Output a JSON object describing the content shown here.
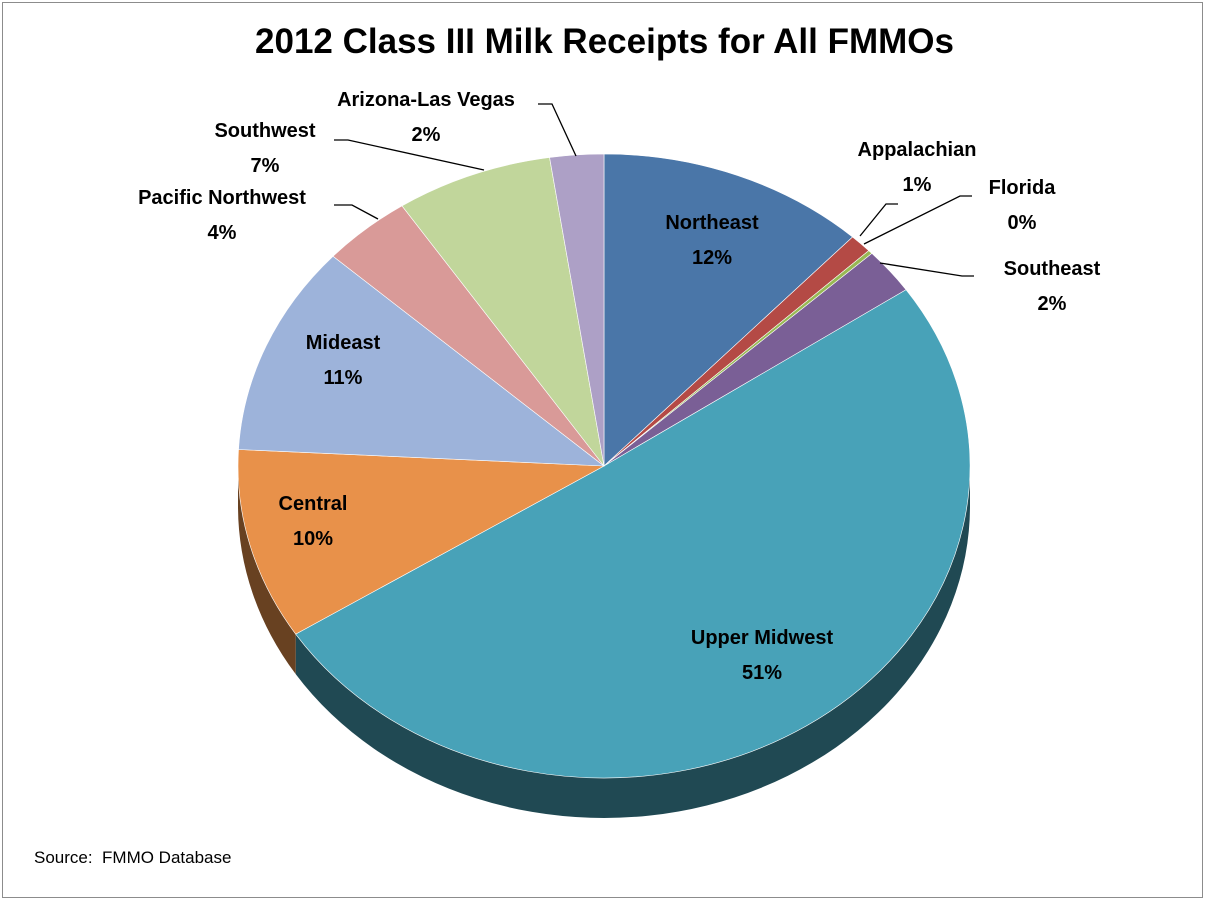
{
  "chart_data": {
    "type": "pie",
    "title": "2012 Class III Milk Receipts for All FMMOs",
    "three_d": true,
    "slices": [
      {
        "label": "Northeast",
        "value": 12,
        "value_label": "12%",
        "color": "#4A76A8"
      },
      {
        "label": "Appalachian",
        "value": 1,
        "value_label": "1%",
        "color": "#B44A45"
      },
      {
        "label": "Florida",
        "value": 0.2,
        "value_label": "0%",
        "color": "#98B954"
      },
      {
        "label": "Southeast",
        "value": 2.4,
        "value_label": "2%",
        "color": "#7A5F96"
      },
      {
        "label": "Upper Midwest",
        "value": 51,
        "value_label": "51%",
        "color": "#48A2B8"
      },
      {
        "label": "Central",
        "value": 10,
        "value_label": "10%",
        "color": "#E8914A"
      },
      {
        "label": "Mideast",
        "value": 11,
        "value_label": "11%",
        "color": "#9DB3DA"
      },
      {
        "label": "Pacific Northwest",
        "value": 4,
        "value_label": "4%",
        "color": "#D99A98"
      },
      {
        "label": "Southwest",
        "value": 7,
        "value_label": "7%",
        "color": "#C1D69B"
      },
      {
        "label": "Arizona-Las Vegas",
        "value": 2.4,
        "value_label": "2%",
        "color": "#ADA0C6"
      }
    ],
    "legend": "none",
    "data_labels": "category name and percentage"
  },
  "source_note": "Source:  FMMO Database"
}
